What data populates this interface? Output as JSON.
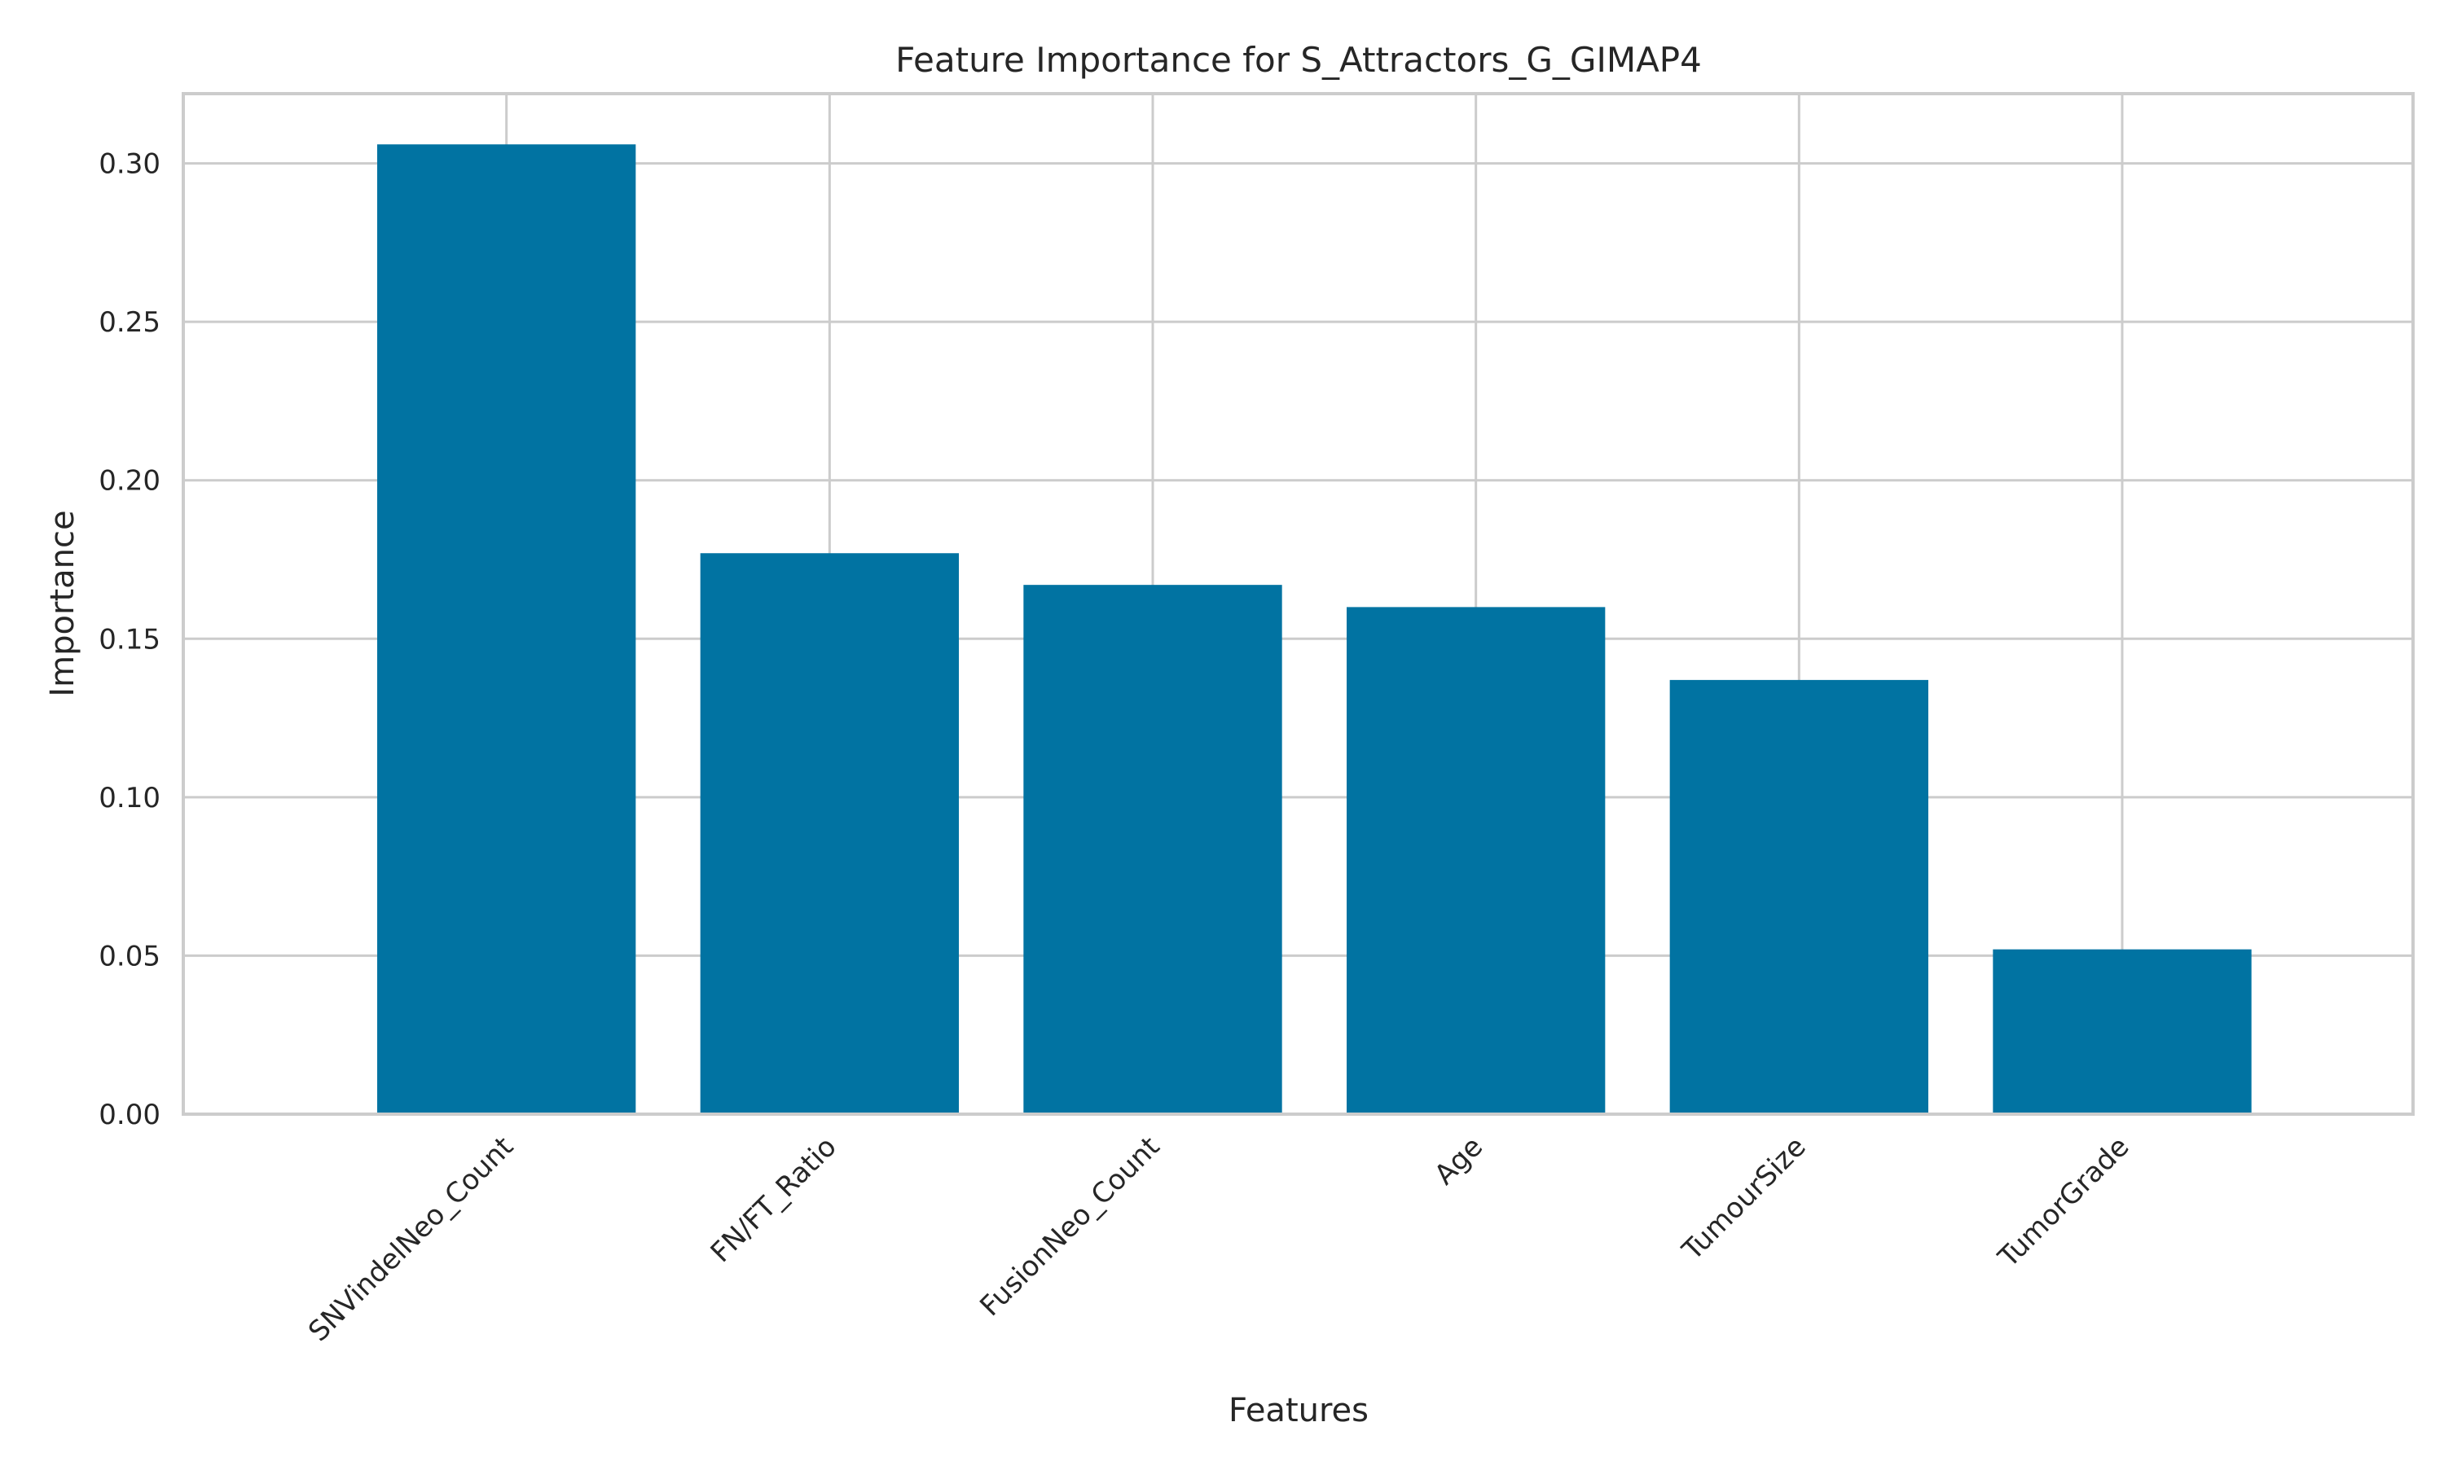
{
  "chart_data": {
    "type": "bar",
    "title": "Feature Importance for S_Attractors_G_GIMAP4",
    "xlabel": "Features",
    "ylabel": "Importance",
    "categories": [
      "SNVindelNeo_Count",
      "FN/FT_Ratio",
      "FusionNeo_Count",
      "Age",
      "TumourSize",
      "TumorGrade"
    ],
    "values": [
      0.306,
      0.177,
      0.167,
      0.16,
      0.137,
      0.052
    ],
    "ylim": [
      0,
      0.322
    ],
    "yticks": [
      "0.00",
      "0.05",
      "0.10",
      "0.15",
      "0.20",
      "0.25",
      "0.30"
    ],
    "bar_color": "#0173a2",
    "grid": true,
    "legend": "none"
  }
}
